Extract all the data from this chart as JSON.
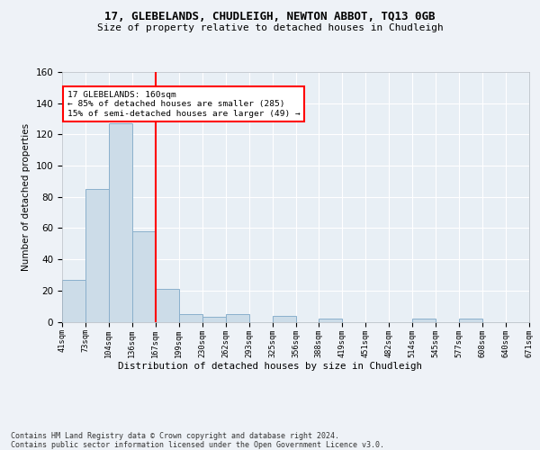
{
  "title1": "17, GLEBELANDS, CHUDLEIGH, NEWTON ABBOT, TQ13 0GB",
  "title2": "Size of property relative to detached houses in Chudleigh",
  "xlabel": "Distribution of detached houses by size in Chudleigh",
  "ylabel": "Number of detached properties",
  "bar_values": [
    27,
    85,
    127,
    58,
    21,
    5,
    3,
    5,
    0,
    4,
    0,
    2,
    0,
    0,
    0,
    2,
    0,
    2,
    0,
    0
  ],
  "bin_labels": [
    "41sqm",
    "73sqm",
    "104sqm",
    "136sqm",
    "167sqm",
    "199sqm",
    "230sqm",
    "262sqm",
    "293sqm",
    "325sqm",
    "356sqm",
    "388sqm",
    "419sqm",
    "451sqm",
    "482sqm",
    "514sqm",
    "545sqm",
    "577sqm",
    "608sqm",
    "640sqm",
    "671sqm"
  ],
  "bar_color": "#ccdce8",
  "bar_edge_color": "#8ab0cc",
  "vline_x": 4,
  "vline_color": "red",
  "annotation_text": "17 GLEBELANDS: 160sqm\n← 85% of detached houses are smaller (285)\n15% of semi-detached houses are larger (49) →",
  "annotation_box_color": "white",
  "annotation_box_edge": "red",
  "ylim": [
    0,
    160
  ],
  "yticks": [
    0,
    20,
    40,
    60,
    80,
    100,
    120,
    140,
    160
  ],
  "footer": "Contains HM Land Registry data © Crown copyright and database right 2024.\nContains public sector information licensed under the Open Government Licence v3.0.",
  "bg_color": "#eef2f7",
  "plot_bg_color": "#e8eff5"
}
